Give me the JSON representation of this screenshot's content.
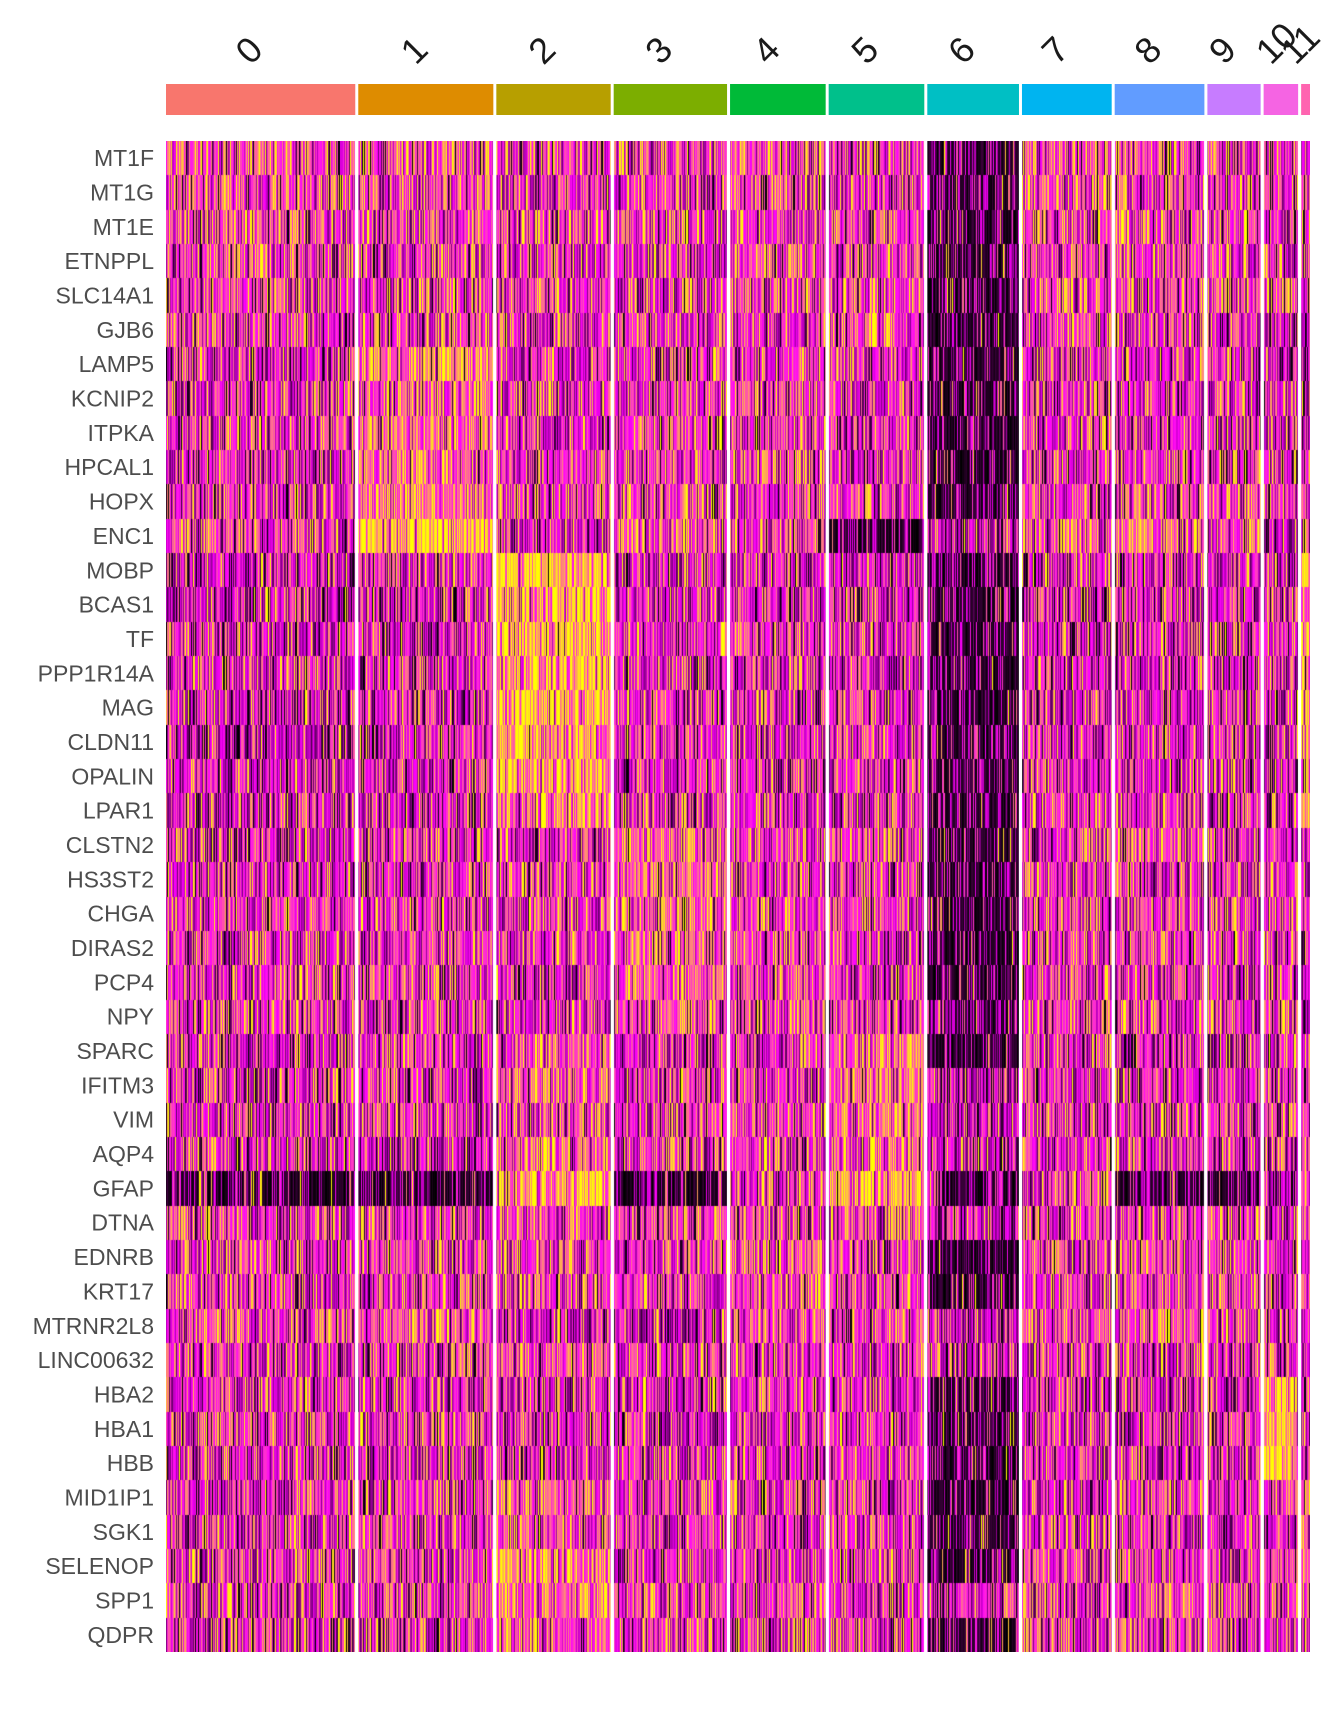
{
  "chart_data": {
    "type": "heatmap",
    "title": "",
    "xlabel": "",
    "ylabel": "",
    "legend": "none",
    "grid": false,
    "colorscale": {
      "low": "#000000",
      "mid": "#ff00ff",
      "high": "#ffff00"
    },
    "clusters": [
      {
        "label": "0",
        "color": "#F8766D",
        "cells": 192
      },
      {
        "label": "1",
        "color": "#DE8C00",
        "cells": 137
      },
      {
        "label": "2",
        "color": "#B79F00",
        "cells": 116
      },
      {
        "label": "3",
        "color": "#7CAE00",
        "cells": 115
      },
      {
        "label": "4",
        "color": "#00BA38",
        "cells": 97
      },
      {
        "label": "5",
        "color": "#00C08B",
        "cells": 97
      },
      {
        "label": "6",
        "color": "#00BFC4",
        "cells": 93
      },
      {
        "label": "7",
        "color": "#00B4F0",
        "cells": 91
      },
      {
        "label": "8",
        "color": "#619CFF",
        "cells": 91
      },
      {
        "label": "9",
        "color": "#C77CFF",
        "cells": 54
      },
      {
        "label": "10",
        "color": "#F564E3",
        "cells": 35
      },
      {
        "label": "11",
        "color": "#FF64B0",
        "cells": 9
      }
    ],
    "genes": [
      "MT1F",
      "MT1G",
      "MT1E",
      "ETNPPL",
      "SLC14A1",
      "GJB6",
      "LAMP5",
      "KCNIP2",
      "ITPKA",
      "HPCAL1",
      "HOPX",
      "ENC1",
      "MOBP",
      "BCAS1",
      "TF",
      "PPP1R14A",
      "MAG",
      "CLDN11",
      "OPALIN",
      "LPAR1",
      "CLSTN2",
      "HS3ST2",
      "CHGA",
      "DIRAS2",
      "PCP4",
      "NPY",
      "SPARC",
      "IFITM3",
      "VIM",
      "AQP4",
      "GFAP",
      "DTNA",
      "EDNRB",
      "KRT17",
      "MTRNR2L8",
      "LINC00632",
      "HBA2",
      "HBA1",
      "HBB",
      "MID1IP1",
      "SGK1",
      "SELENOP",
      "SPP1",
      "QDPR"
    ],
    "mean_expression": [
      [
        0.6,
        0.45,
        0.2,
        0.35,
        0.4,
        0.35,
        -0.6,
        0.6,
        0.5,
        0.3,
        0.3,
        -0.2
      ],
      [
        0.45,
        0.4,
        0.1,
        0.2,
        0.35,
        0.35,
        -0.5,
        0.55,
        0.4,
        0.3,
        0.2,
        -0.2
      ],
      [
        0.45,
        0.35,
        0.1,
        0.2,
        0.3,
        0.35,
        -0.5,
        0.5,
        0.4,
        0.3,
        0.2,
        -0.2
      ],
      [
        0.4,
        0.3,
        0.0,
        0.2,
        0.3,
        0.3,
        -0.6,
        0.45,
        0.35,
        0.3,
        0.2,
        0.3
      ],
      [
        0.4,
        0.3,
        0.2,
        0.2,
        0.35,
        0.35,
        -0.6,
        0.5,
        0.4,
        0.3,
        0.2,
        -0.2
      ],
      [
        0.4,
        0.2,
        0.0,
        0.2,
        0.3,
        0.3,
        -0.6,
        0.45,
        0.4,
        0.3,
        0.2,
        -0.2
      ],
      [
        0.0,
        1.1,
        0.0,
        0.2,
        0.2,
        0.1,
        -0.6,
        0.1,
        0.1,
        0.1,
        0.0,
        -0.2
      ],
      [
        0.0,
        0.9,
        0.0,
        0.3,
        0.3,
        0.1,
        -0.6,
        0.1,
        0.2,
        0.2,
        0.0,
        -0.2
      ],
      [
        0.1,
        0.9,
        0.0,
        0.3,
        0.3,
        0.1,
        -0.5,
        0.2,
        0.2,
        0.2,
        0.0,
        -0.2
      ],
      [
        0.1,
        0.95,
        0.0,
        0.3,
        0.3,
        0.1,
        -0.5,
        0.2,
        0.3,
        0.2,
        0.0,
        0.3
      ],
      [
        0.2,
        1.0,
        0.1,
        0.3,
        0.2,
        0.2,
        -0.5,
        0.2,
        0.4,
        0.4,
        0.0,
        -0.2
      ],
      [
        0.4,
        1.8,
        -0.3,
        0.6,
        0.4,
        -0.4,
        -0.3,
        0.6,
        1.0,
        0.5,
        -0.2,
        -0.2
      ],
      [
        -0.2,
        -0.2,
        1.9,
        -0.1,
        0.0,
        -0.2,
        -0.4,
        -0.2,
        -0.3,
        -0.3,
        -0.3,
        1.5
      ],
      [
        -0.1,
        -0.1,
        1.7,
        0.0,
        0.0,
        -0.1,
        -0.5,
        -0.1,
        -0.1,
        -0.1,
        0.0,
        1.2
      ],
      [
        -0.1,
        -0.1,
        1.7,
        0.0,
        0.1,
        0.0,
        -0.5,
        0.0,
        0.0,
        0.0,
        0.0,
        1.4
      ],
      [
        -0.1,
        -0.1,
        1.6,
        0.0,
        0.0,
        0.0,
        -0.5,
        0.0,
        0.0,
        0.0,
        0.0,
        1.3
      ],
      [
        -0.1,
        -0.1,
        1.6,
        0.0,
        0.0,
        0.0,
        -0.5,
        0.0,
        0.0,
        0.0,
        0.0,
        1.3
      ],
      [
        -0.2,
        -0.1,
        1.5,
        0.0,
        0.0,
        0.0,
        -0.5,
        0.0,
        0.0,
        0.0,
        0.0,
        1.2
      ],
      [
        -0.1,
        -0.1,
        1.3,
        0.0,
        0.1,
        0.0,
        -0.5,
        0.0,
        0.0,
        0.0,
        0.0,
        1.0
      ],
      [
        -0.1,
        -0.1,
        1.2,
        0.0,
        0.1,
        0.0,
        -0.5,
        0.1,
        0.1,
        0.0,
        0.0,
        0.9
      ],
      [
        -0.1,
        0.1,
        0.0,
        0.9,
        0.4,
        0.1,
        -0.6,
        0.2,
        0.3,
        0.2,
        0.1,
        -0.2
      ],
      [
        -0.1,
        0.1,
        0.0,
        0.8,
        0.3,
        0.1,
        -0.7,
        0.2,
        0.2,
        0.2,
        0.1,
        -0.2
      ],
      [
        0.2,
        0.2,
        0.0,
        0.8,
        0.4,
        0.2,
        -0.4,
        0.3,
        0.3,
        0.3,
        0.1,
        0.0
      ],
      [
        0.1,
        0.2,
        0.0,
        0.8,
        0.3,
        0.1,
        -0.5,
        0.2,
        0.2,
        0.2,
        0.1,
        -0.2
      ],
      [
        0.2,
        0.2,
        0.0,
        0.8,
        0.3,
        0.1,
        -0.5,
        0.3,
        0.3,
        0.2,
        0.1,
        -0.2
      ],
      [
        0.2,
        0.2,
        0.0,
        0.5,
        0.3,
        0.1,
        -0.6,
        0.2,
        0.2,
        0.2,
        0.1,
        -0.2
      ],
      [
        0.0,
        0.1,
        0.6,
        0.1,
        0.2,
        0.9,
        -0.4,
        0.2,
        0.1,
        0.1,
        0.2,
        0.0
      ],
      [
        0.1,
        0.1,
        0.6,
        0.1,
        0.2,
        0.9,
        -0.3,
        0.2,
        0.1,
        0.1,
        0.2,
        0.0
      ],
      [
        0.1,
        0.1,
        0.5,
        0.1,
        0.3,
        0.7,
        -0.3,
        0.2,
        0.2,
        0.1,
        0.2,
        0.0
      ],
      [
        0.1,
        -0.2,
        0.8,
        0.0,
        0.2,
        0.8,
        -0.3,
        0.2,
        0.1,
        0.1,
        0.1,
        0.3
      ],
      [
        -0.4,
        -0.6,
        1.6,
        -0.4,
        0.1,
        1.5,
        -0.4,
        0.3,
        -0.6,
        -0.5,
        -0.3,
        1.0
      ],
      [
        0.1,
        0.1,
        0.4,
        0.2,
        0.3,
        0.7,
        -0.3,
        0.2,
        0.2,
        0.1,
        0.1,
        0.0
      ],
      [
        0.2,
        0.2,
        0.4,
        0.2,
        0.3,
        0.4,
        -0.7,
        0.3,
        0.3,
        0.2,
        0.1,
        -0.2
      ],
      [
        0.2,
        0.2,
        0.2,
        0.3,
        0.3,
        0.3,
        -0.7,
        0.3,
        0.3,
        0.2,
        0.1,
        -0.2
      ],
      [
        0.5,
        0.5,
        -0.2,
        -0.2,
        0.4,
        0.4,
        -0.3,
        0.5,
        0.3,
        0.3,
        -0.2,
        -0.2
      ],
      [
        0.2,
        0.1,
        0.4,
        0.3,
        0.2,
        0.1,
        -0.3,
        0.2,
        0.2,
        0.1,
        0.2,
        -0.2
      ],
      [
        0.1,
        0.1,
        0.1,
        0.1,
        0.1,
        0.1,
        -0.4,
        0.1,
        0.1,
        0.1,
        2.0,
        -0.2
      ],
      [
        0.1,
        0.1,
        0.1,
        0.1,
        0.1,
        0.1,
        -0.4,
        0.1,
        0.1,
        0.1,
        1.6,
        -0.2
      ],
      [
        0.0,
        0.0,
        0.0,
        0.0,
        0.0,
        0.0,
        -0.4,
        0.0,
        0.0,
        0.0,
        2.0,
        -0.2
      ],
      [
        0.0,
        0.0,
        0.9,
        0.1,
        0.1,
        0.1,
        -0.5,
        0.1,
        0.1,
        0.1,
        0.1,
        0.8
      ],
      [
        0.1,
        0.1,
        0.6,
        0.2,
        0.2,
        0.2,
        -0.6,
        0.2,
        0.1,
        0.1,
        0.1,
        0.3
      ],
      [
        0.1,
        0.2,
        1.1,
        0.1,
        0.2,
        0.2,
        -0.5,
        0.2,
        0.2,
        0.2,
        0.5,
        0.9
      ],
      [
        0.2,
        0.2,
        0.9,
        0.2,
        0.2,
        0.2,
        -0.3,
        0.2,
        0.2,
        0.3,
        0.3,
        0.9
      ],
      [
        0.1,
        0.0,
        0.8,
        0.4,
        0.2,
        0.2,
        -0.4,
        0.2,
        0.1,
        0.1,
        0.1,
        0.6
      ]
    ]
  }
}
